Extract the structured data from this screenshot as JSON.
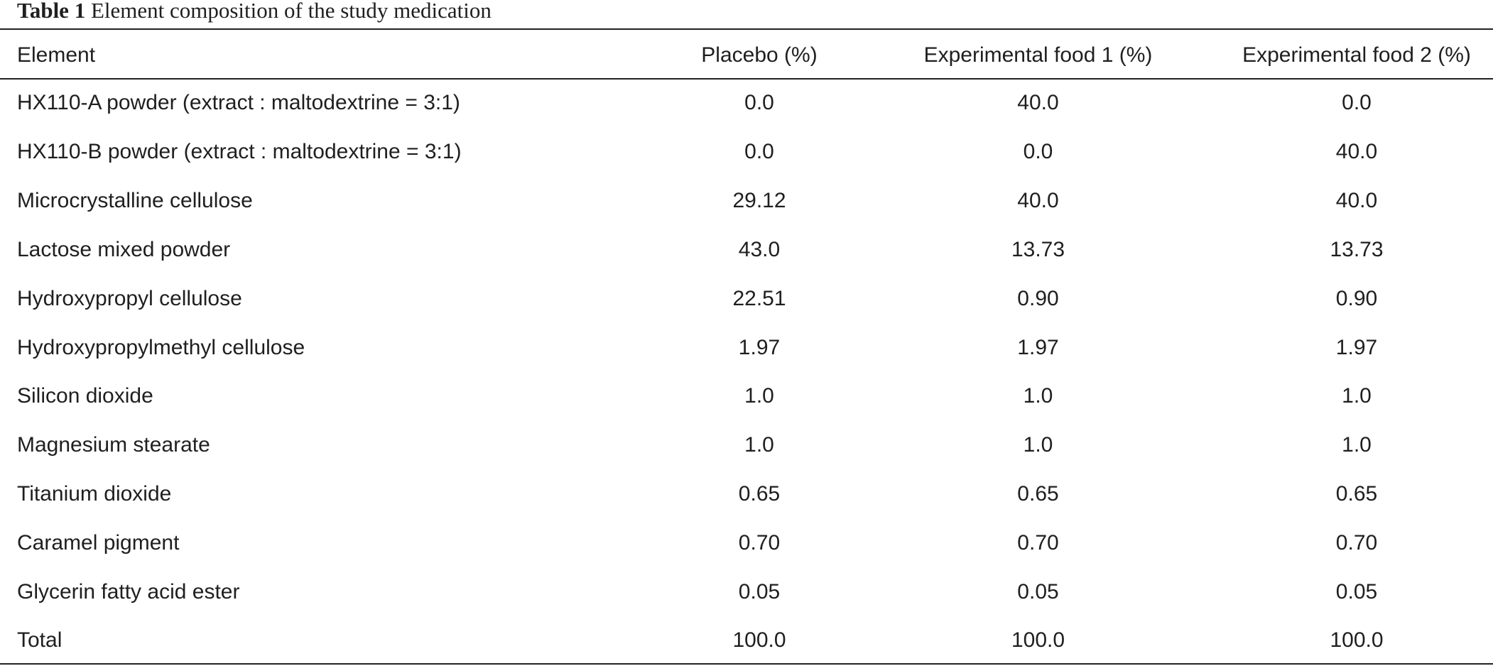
{
  "caption": {
    "label": "Table 1",
    "title": "Element composition of the study medication"
  },
  "table": {
    "headers": [
      "Element",
      "Placebo (%)",
      "Experimental food 1 (%)",
      "Experimental food 2 (%)"
    ],
    "rows": [
      [
        "HX110-A powder (extract : maltodextrine = 3:1)",
        "0.0",
        "40.0",
        "0.0"
      ],
      [
        "HX110-B powder (extract : maltodextrine = 3:1)",
        "0.0",
        "0.0",
        "40.0"
      ],
      [
        "Microcrystalline cellulose",
        "29.12",
        "40.0",
        "40.0"
      ],
      [
        "Lactose mixed powder",
        "43.0",
        "13.73",
        "13.73"
      ],
      [
        "Hydroxypropyl cellulose",
        "22.51",
        "0.90",
        "0.90"
      ],
      [
        "Hydroxypropylmethyl cellulose",
        "1.97",
        "1.97",
        "1.97"
      ],
      [
        "Silicon dioxide",
        "1.0",
        "1.0",
        "1.0"
      ],
      [
        "Magnesium stearate",
        "1.0",
        "1.0",
        "1.0"
      ],
      [
        "Titanium dioxide",
        "0.65",
        "0.65",
        "0.65"
      ],
      [
        "Caramel pigment",
        "0.70",
        "0.70",
        "0.70"
      ],
      [
        "Glycerin fatty acid ester",
        "0.05",
        "0.05",
        "0.05"
      ],
      [
        "Total",
        "100.0",
        "100.0",
        "100.0"
      ]
    ]
  }
}
